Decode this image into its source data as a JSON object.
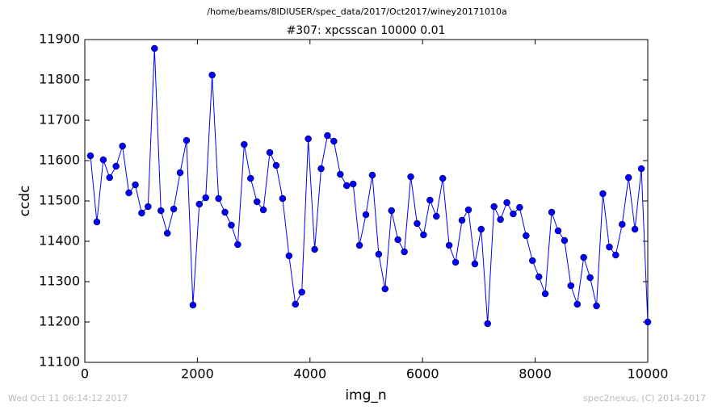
{
  "chart_data": {
    "type": "line",
    "suptitle": "/home/beams/8IDIUSER/spec_data/2017/Oct2017/winey20171010a",
    "title": "#307: xpcsscan 10000 0.01",
    "x_label": "img_n",
    "y_label": "ccdc",
    "footer_left": "Wed Oct 11 06:14:12 2017",
    "footer_right": "spec2nexus, (C) 2014-2017",
    "x": [
      100,
      214,
      328,
      441,
      555,
      669,
      783,
      897,
      1010,
      1124,
      1238,
      1352,
      1466,
      1579,
      1693,
      1807,
      1921,
      2034,
      2148,
      2262,
      2376,
      2490,
      2603,
      2717,
      2831,
      2945,
      3059,
      3172,
      3286,
      3400,
      3514,
      3628,
      3741,
      3855,
      3969,
      4083,
      4197,
      4310,
      4424,
      4538,
      4652,
      4766,
      4879,
      4993,
      5107,
      5221,
      5334,
      5448,
      5562,
      5676,
      5790,
      5903,
      6017,
      6131,
      6245,
      6359,
      6472,
      6586,
      6700,
      6814,
      6928,
      7041,
      7155,
      7269,
      7383,
      7497,
      7610,
      7724,
      7838,
      7952,
      8066,
      8179,
      8293,
      8407,
      8521,
      8634,
      8748,
      8862,
      8976,
      9090,
      9203,
      9317,
      9431,
      9545,
      9659,
      9772,
      9886,
      10000
    ],
    "series": [
      {
        "color": "#0000ff",
        "values": [
          11612,
          11448,
          11602,
          11558,
          11586,
          11636,
          11520,
          11540,
          11470,
          11486,
          11878,
          11476,
          11420,
          11480,
          11570,
          11650,
          11242,
          11492,
          11508,
          11812,
          11506,
          11472,
          11440,
          11392,
          11640,
          11556,
          11498,
          11478,
          11620,
          11588,
          11506,
          11364,
          11244,
          11274,
          11654,
          11380,
          11580,
          11662,
          11648,
          11566,
          11538,
          11542,
          11390,
          11466,
          11564,
          11368,
          11282,
          11476,
          11404,
          11374,
          11560,
          11444,
          11416,
          11502,
          11462,
          11556,
          11390,
          11348,
          11452,
          11478,
          11344,
          11430,
          11196,
          11486,
          11454,
          11496,
          11468,
          11484,
          11414,
          11352,
          11312,
          11270,
          11472,
          11426,
          11402,
          11290,
          11244,
          11360,
          11310,
          11240,
          11518,
          11386,
          11366,
          11442,
          11558,
          11430,
          11580,
          11200
        ]
      }
    ],
    "xlim": [
      0,
      10000
    ],
    "xticks": [
      0,
      2000,
      4000,
      6000,
      8000,
      10000
    ],
    "ylim": [
      11100,
      11900
    ],
    "yticks": [
      11100,
      11200,
      11300,
      11400,
      11500,
      11600,
      11700,
      11800,
      11900
    ],
    "grid": false
  }
}
